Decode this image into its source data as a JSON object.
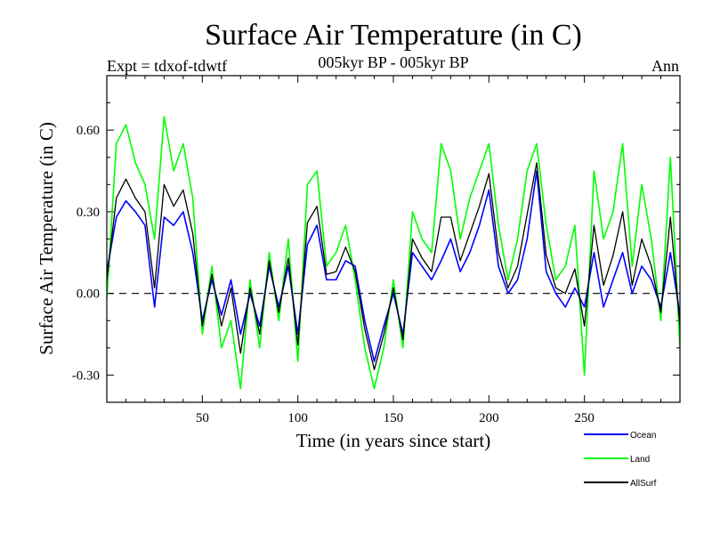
{
  "chart_data": {
    "type": "line",
    "title": "Surface Air Temperature (in C)",
    "subtitle": "005kyr BP - 005kyr BP",
    "experiment_label": "Expt = tdxof-tdwtf",
    "period_label": "Ann",
    "xlabel": "Time (in years since start)",
    "ylabel": "Surface Air Temperature (in C)",
    "xlim": [
      0,
      300
    ],
    "ylim": [
      -0.4,
      0.8
    ],
    "xticks": [
      50,
      100,
      150,
      200,
      250
    ],
    "xtick_labels": [
      "50",
      "100",
      "150",
      "200",
      "250"
    ],
    "yticks": [
      -0.3,
      0.0,
      0.3,
      0.6
    ],
    "ytick_labels": [
      "-0.30",
      "0.00",
      "0.30",
      "0.60"
    ],
    "reference_line": 0.0,
    "grid": false,
    "legend_position": "bottom-right",
    "x": [
      0,
      5,
      10,
      15,
      20,
      25,
      30,
      35,
      40,
      45,
      50,
      55,
      60,
      65,
      70,
      75,
      80,
      85,
      90,
      95,
      100,
      105,
      110,
      115,
      120,
      125,
      130,
      135,
      140,
      145,
      150,
      155,
      160,
      165,
      170,
      175,
      180,
      185,
      190,
      195,
      200,
      205,
      210,
      215,
      220,
      225,
      230,
      235,
      240,
      245,
      250,
      255,
      260,
      265,
      270,
      275,
      280,
      285,
      290,
      295,
      300
    ],
    "series": [
      {
        "name": "Ocean",
        "color": "#0000ff",
        "values": [
          0.08,
          0.28,
          0.34,
          0.3,
          0.25,
          -0.05,
          0.28,
          0.25,
          0.3,
          0.15,
          -0.1,
          0.05,
          -0.08,
          0.05,
          -0.15,
          0.0,
          -0.12,
          0.1,
          -0.05,
          0.1,
          -0.15,
          0.18,
          0.25,
          0.05,
          0.05,
          0.12,
          0.1,
          -0.1,
          -0.25,
          -0.12,
          0.0,
          -0.15,
          0.15,
          0.1,
          0.05,
          0.12,
          0.2,
          0.08,
          0.15,
          0.25,
          0.38,
          0.1,
          0.0,
          0.05,
          0.2,
          0.45,
          0.08,
          0.0,
          -0.05,
          0.02,
          -0.05,
          0.15,
          -0.05,
          0.05,
          0.15,
          0.0,
          0.1,
          0.05,
          -0.05,
          0.15,
          -0.08
        ]
      },
      {
        "name": "Land",
        "color": "#00ff00",
        "values": [
          -0.02,
          0.55,
          0.62,
          0.48,
          0.4,
          0.2,
          0.65,
          0.45,
          0.55,
          0.35,
          -0.15,
          0.1,
          -0.2,
          -0.1,
          -0.35,
          0.05,
          -0.2,
          0.15,
          -0.1,
          0.2,
          -0.25,
          0.4,
          0.45,
          0.1,
          0.15,
          0.25,
          0.05,
          -0.2,
          -0.35,
          -0.2,
          0.05,
          -0.2,
          0.3,
          0.2,
          0.15,
          0.55,
          0.45,
          0.2,
          0.35,
          0.45,
          0.55,
          0.25,
          0.05,
          0.2,
          0.45,
          0.55,
          0.25,
          0.05,
          0.1,
          0.25,
          -0.3,
          0.45,
          0.2,
          0.3,
          0.55,
          0.1,
          0.4,
          0.2,
          -0.1,
          0.5,
          -0.2
        ]
      },
      {
        "name": "AllSurf",
        "color": "#000000",
        "values": [
          0.05,
          0.35,
          0.42,
          0.35,
          0.3,
          0.02,
          0.4,
          0.32,
          0.38,
          0.22,
          -0.12,
          0.07,
          -0.12,
          0.02,
          -0.22,
          0.02,
          -0.15,
          0.12,
          -0.07,
          0.13,
          -0.19,
          0.26,
          0.32,
          0.07,
          0.08,
          0.17,
          0.08,
          -0.13,
          -0.28,
          -0.15,
          0.02,
          -0.17,
          0.2,
          0.13,
          0.08,
          0.28,
          0.28,
          0.12,
          0.22,
          0.32,
          0.44,
          0.15,
          0.02,
          0.1,
          0.29,
          0.48,
          0.14,
          0.02,
          0.0,
          0.09,
          -0.12,
          0.25,
          0.03,
          0.14,
          0.3,
          0.03,
          0.2,
          0.1,
          -0.07,
          0.28,
          -0.12
        ]
      }
    ]
  }
}
